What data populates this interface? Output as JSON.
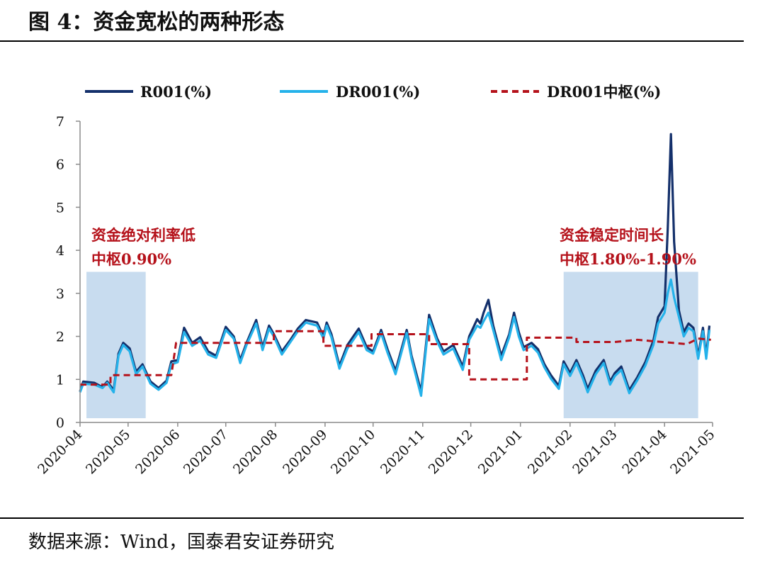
{
  "figure": {
    "title": "图 4：资金宽松的两种形态",
    "source": "数据来源：Wind，国泰君安证券研究"
  },
  "colors": {
    "r001": "#14306b",
    "dr001": "#25b2ea",
    "center": "#b5121b",
    "region": "#c8dcef"
  },
  "chart_data": {
    "type": "line",
    "x_type": "date",
    "x_ticks": [
      "2020-04",
      "2020-05",
      "2020-06",
      "2020-07",
      "2020-08",
      "2020-09",
      "2020-10",
      "2020-11",
      "2020-12",
      "2021-01",
      "2021-02",
      "2021-03",
      "2021-04",
      "2021-05"
    ],
    "ylim": [
      0,
      7
    ],
    "y_ticks": [
      "0",
      "1",
      "2",
      "3",
      "4",
      "5",
      "6",
      "7"
    ],
    "grid": false,
    "legend_position": "top",
    "series": [
      {
        "name": "R001(%)",
        "style": "solid",
        "points": [
          [
            "2020-04-01",
            0.72
          ],
          [
            "2020-04-03",
            0.95
          ],
          [
            "2020-04-10",
            0.92
          ],
          [
            "2020-04-15",
            0.82
          ],
          [
            "2020-04-18",
            0.95
          ],
          [
            "2020-04-22",
            0.75
          ],
          [
            "2020-04-25",
            1.6
          ],
          [
            "2020-04-28",
            1.85
          ],
          [
            "2020-05-02",
            1.72
          ],
          [
            "2020-05-06",
            1.18
          ],
          [
            "2020-05-10",
            1.35
          ],
          [
            "2020-05-15",
            0.95
          ],
          [
            "2020-05-20",
            0.8
          ],
          [
            "2020-05-25",
            0.97
          ],
          [
            "2020-05-28",
            1.42
          ],
          [
            "2020-06-01",
            1.45
          ],
          [
            "2020-06-05",
            2.2
          ],
          [
            "2020-06-10",
            1.85
          ],
          [
            "2020-06-15",
            1.98
          ],
          [
            "2020-06-20",
            1.65
          ],
          [
            "2020-06-25",
            1.55
          ],
          [
            "2020-07-01",
            2.22
          ],
          [
            "2020-07-06",
            2.0
          ],
          [
            "2020-07-10",
            1.45
          ],
          [
            "2020-07-14",
            1.85
          ],
          [
            "2020-07-20",
            2.38
          ],
          [
            "2020-07-24",
            1.75
          ],
          [
            "2020-07-28",
            2.25
          ],
          [
            "2020-07-31",
            2.05
          ],
          [
            "2020-08-05",
            1.65
          ],
          [
            "2020-08-10",
            1.9
          ],
          [
            "2020-08-15",
            2.18
          ],
          [
            "2020-08-20",
            2.38
          ],
          [
            "2020-08-27",
            2.32
          ],
          [
            "2020-08-31",
            2.0
          ],
          [
            "2020-09-02",
            2.32
          ],
          [
            "2020-09-05",
            2.05
          ],
          [
            "2020-09-10",
            1.32
          ],
          [
            "2020-09-15",
            1.8
          ],
          [
            "2020-09-22",
            2.18
          ],
          [
            "2020-09-27",
            1.75
          ],
          [
            "2020-10-01",
            1.65
          ],
          [
            "2020-10-06",
            2.15
          ],
          [
            "2020-10-10",
            1.7
          ],
          [
            "2020-10-15",
            1.2
          ],
          [
            "2020-10-22",
            2.15
          ],
          [
            "2020-10-25",
            1.55
          ],
          [
            "2020-10-31",
            0.72
          ],
          [
            "2020-11-05",
            2.5
          ],
          [
            "2020-11-10",
            1.95
          ],
          [
            "2020-11-14",
            1.65
          ],
          [
            "2020-11-20",
            1.8
          ],
          [
            "2020-11-26",
            1.3
          ],
          [
            "2020-11-30",
            2.0
          ],
          [
            "2020-12-05",
            2.4
          ],
          [
            "2020-12-07",
            2.3
          ],
          [
            "2020-12-09",
            2.55
          ],
          [
            "2020-12-12",
            2.85
          ],
          [
            "2020-12-15",
            2.25
          ],
          [
            "2020-12-20",
            1.55
          ],
          [
            "2020-12-25",
            2.05
          ],
          [
            "2020-12-28",
            2.55
          ],
          [
            "2020-12-31",
            2.1
          ],
          [
            "2021-01-03",
            1.75
          ],
          [
            "2021-01-08",
            1.85
          ],
          [
            "2021-01-12",
            1.7
          ],
          [
            "2021-01-16",
            1.35
          ],
          [
            "2021-01-20",
            1.1
          ],
          [
            "2021-01-25",
            0.85
          ],
          [
            "2021-01-28",
            1.42
          ],
          [
            "2021-02-01",
            1.15
          ],
          [
            "2021-02-05",
            1.45
          ],
          [
            "2021-02-09",
            1.1
          ],
          [
            "2021-02-12",
            0.78
          ],
          [
            "2021-02-17",
            1.2
          ],
          [
            "2021-02-22",
            1.45
          ],
          [
            "2021-02-26",
            0.95
          ],
          [
            "2021-03-01",
            1.15
          ],
          [
            "2021-03-05",
            1.3
          ],
          [
            "2021-03-10",
            0.75
          ],
          [
            "2021-03-15",
            1.05
          ],
          [
            "2021-03-20",
            1.4
          ],
          [
            "2021-03-25",
            1.9
          ],
          [
            "2021-03-28",
            2.45
          ],
          [
            "2021-04-01",
            2.7
          ],
          [
            "2021-04-03",
            4.5
          ],
          [
            "2021-04-05",
            6.7
          ],
          [
            "2021-04-07",
            4.2
          ],
          [
            "2021-04-10",
            2.6
          ],
          [
            "2021-04-13",
            2.1
          ],
          [
            "2021-04-16",
            2.3
          ],
          [
            "2021-04-19",
            2.2
          ],
          [
            "2021-04-22",
            1.55
          ],
          [
            "2021-04-25",
            2.2
          ],
          [
            "2021-04-27",
            1.55
          ],
          [
            "2021-04-29",
            2.25
          ]
        ]
      },
      {
        "name": "DR001(%)",
        "style": "solid",
        "points": [
          [
            "2020-04-01",
            0.7
          ],
          [
            "2020-04-03",
            0.9
          ],
          [
            "2020-04-10",
            0.88
          ],
          [
            "2020-04-15",
            0.8
          ],
          [
            "2020-04-18",
            0.92
          ],
          [
            "2020-04-22",
            0.7
          ],
          [
            "2020-04-25",
            1.55
          ],
          [
            "2020-04-28",
            1.8
          ],
          [
            "2020-05-02",
            1.65
          ],
          [
            "2020-05-06",
            1.12
          ],
          [
            "2020-05-10",
            1.3
          ],
          [
            "2020-05-15",
            0.9
          ],
          [
            "2020-05-20",
            0.76
          ],
          [
            "2020-05-25",
            0.92
          ],
          [
            "2020-05-28",
            1.35
          ],
          [
            "2020-06-01",
            1.4
          ],
          [
            "2020-06-05",
            2.1
          ],
          [
            "2020-06-10",
            1.78
          ],
          [
            "2020-06-15",
            1.9
          ],
          [
            "2020-06-20",
            1.58
          ],
          [
            "2020-06-25",
            1.5
          ],
          [
            "2020-07-01",
            2.15
          ],
          [
            "2020-07-06",
            1.95
          ],
          [
            "2020-07-10",
            1.38
          ],
          [
            "2020-07-14",
            1.8
          ],
          [
            "2020-07-20",
            2.3
          ],
          [
            "2020-07-24",
            1.68
          ],
          [
            "2020-07-28",
            2.18
          ],
          [
            "2020-07-31",
            2.0
          ],
          [
            "2020-08-05",
            1.58
          ],
          [
            "2020-08-10",
            1.85
          ],
          [
            "2020-08-15",
            2.12
          ],
          [
            "2020-08-20",
            2.32
          ],
          [
            "2020-08-27",
            2.25
          ],
          [
            "2020-08-31",
            1.95
          ],
          [
            "2020-09-02",
            2.25
          ],
          [
            "2020-09-05",
            1.98
          ],
          [
            "2020-09-10",
            1.25
          ],
          [
            "2020-09-15",
            1.72
          ],
          [
            "2020-09-22",
            2.1
          ],
          [
            "2020-09-27",
            1.68
          ],
          [
            "2020-10-01",
            1.6
          ],
          [
            "2020-10-06",
            2.08
          ],
          [
            "2020-10-10",
            1.62
          ],
          [
            "2020-10-15",
            1.12
          ],
          [
            "2020-10-22",
            2.08
          ],
          [
            "2020-10-25",
            1.48
          ],
          [
            "2020-10-31",
            0.62
          ],
          [
            "2020-11-05",
            2.4
          ],
          [
            "2020-11-10",
            1.88
          ],
          [
            "2020-11-14",
            1.58
          ],
          [
            "2020-11-20",
            1.72
          ],
          [
            "2020-11-26",
            1.22
          ],
          [
            "2020-11-30",
            1.92
          ],
          [
            "2020-12-05",
            2.25
          ],
          [
            "2020-12-07",
            2.2
          ],
          [
            "2020-12-09",
            2.35
          ],
          [
            "2020-12-12",
            2.55
          ],
          [
            "2020-12-15",
            2.15
          ],
          [
            "2020-12-20",
            1.45
          ],
          [
            "2020-12-25",
            1.98
          ],
          [
            "2020-12-28",
            2.45
          ],
          [
            "2020-12-31",
            2.0
          ],
          [
            "2021-01-03",
            1.68
          ],
          [
            "2021-01-08",
            1.78
          ],
          [
            "2021-01-12",
            1.62
          ],
          [
            "2021-01-16",
            1.28
          ],
          [
            "2021-01-20",
            1.02
          ],
          [
            "2021-01-25",
            0.78
          ],
          [
            "2021-01-28",
            1.35
          ],
          [
            "2021-02-01",
            1.08
          ],
          [
            "2021-02-05",
            1.38
          ],
          [
            "2021-02-09",
            1.02
          ],
          [
            "2021-02-12",
            0.7
          ],
          [
            "2021-02-17",
            1.12
          ],
          [
            "2021-02-22",
            1.38
          ],
          [
            "2021-02-26",
            0.88
          ],
          [
            "2021-03-01",
            1.08
          ],
          [
            "2021-03-05",
            1.22
          ],
          [
            "2021-03-10",
            0.68
          ],
          [
            "2021-03-15",
            0.98
          ],
          [
            "2021-03-20",
            1.32
          ],
          [
            "2021-03-25",
            1.8
          ],
          [
            "2021-03-28",
            2.3
          ],
          [
            "2021-04-01",
            2.55
          ],
          [
            "2021-04-03",
            3.0
          ],
          [
            "2021-04-05",
            3.32
          ],
          [
            "2021-04-07",
            2.9
          ],
          [
            "2021-04-10",
            2.45
          ],
          [
            "2021-04-13",
            2.0
          ],
          [
            "2021-04-16",
            2.2
          ],
          [
            "2021-04-19",
            2.12
          ],
          [
            "2021-04-22",
            1.48
          ],
          [
            "2021-04-25",
            2.12
          ],
          [
            "2021-04-27",
            1.48
          ],
          [
            "2021-04-29",
            2.15
          ]
        ]
      },
      {
        "name": "DR001中枢(%)",
        "style": "dashed",
        "points": [
          [
            "2020-04-01",
            0.88
          ],
          [
            "2020-04-20",
            0.88
          ],
          [
            "2020-04-20",
            1.1
          ],
          [
            "2020-05-28",
            1.1
          ],
          [
            "2020-05-31",
            1.85
          ],
          [
            "2020-06-30",
            1.85
          ],
          [
            "2020-07-31",
            1.85
          ],
          [
            "2020-07-31",
            2.12
          ],
          [
            "2020-08-31",
            2.12
          ],
          [
            "2020-08-31",
            1.78
          ],
          [
            "2020-09-30",
            1.78
          ],
          [
            "2020-09-30",
            2.05
          ],
          [
            "2020-11-05",
            2.05
          ],
          [
            "2020-11-05",
            1.82
          ],
          [
            "2020-11-30",
            1.82
          ],
          [
            "2020-11-30",
            1.0
          ],
          [
            "2021-01-05",
            1.0
          ],
          [
            "2021-01-05",
            1.97
          ],
          [
            "2021-02-05",
            1.97
          ],
          [
            "2021-02-05",
            1.87
          ],
          [
            "2021-03-01",
            1.87
          ],
          [
            "2021-03-15",
            1.92
          ],
          [
            "2021-04-15",
            1.82
          ],
          [
            "2021-04-22",
            1.95
          ],
          [
            "2021-04-30",
            1.92
          ]
        ]
      }
    ],
    "annotations": [
      {
        "lines": [
          "资金绝对利率低",
          "中枢0.90%"
        ],
        "region": [
          "2020-04-05",
          "2020-05-12"
        ]
      },
      {
        "lines": [
          "资金稳定时间长",
          "中枢1.80%-1.90%"
        ],
        "region": [
          "2021-01-28",
          "2021-04-22"
        ]
      }
    ]
  }
}
